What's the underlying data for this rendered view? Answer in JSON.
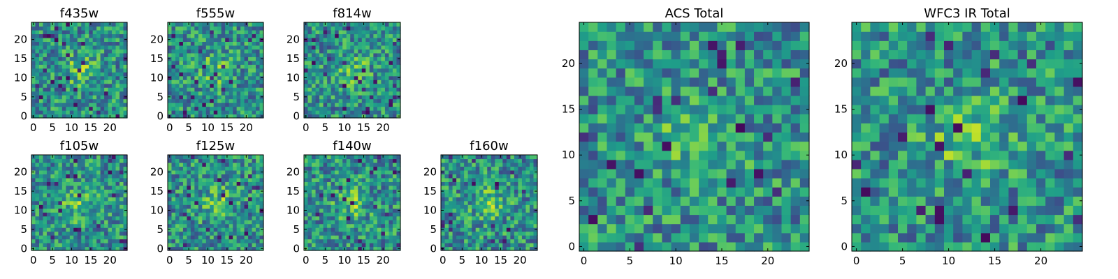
{
  "figure": {
    "panels": [
      {
        "id": "f435w",
        "title": "f435w",
        "seed": 11
      },
      {
        "id": "f555w",
        "title": "f555w",
        "seed": 23
      },
      {
        "id": "f814w",
        "title": "f814w",
        "seed": 37
      },
      {
        "id": "f105w",
        "title": "f105w",
        "seed": 41
      },
      {
        "id": "f125w",
        "title": "f125w",
        "seed": 53
      },
      {
        "id": "f140w",
        "title": "f140w",
        "seed": 67
      },
      {
        "id": "f160w",
        "title": "f160w",
        "seed": 79
      },
      {
        "id": "acs-total",
        "title": "ACS Total",
        "seed": 97
      },
      {
        "id": "wfc3-ir-total",
        "title": "WFC3 IR Total",
        "seed": 113
      }
    ]
  },
  "chart_data": {
    "type": "heatmap",
    "colormap": "viridis",
    "grid_size": 25,
    "x_ticks": [
      "0",
      "5",
      "10",
      "15",
      "20"
    ],
    "y_ticks": [
      "0",
      "5",
      "10",
      "15",
      "20"
    ],
    "xlim": [
      0,
      25
    ],
    "ylim": [
      0,
      25
    ],
    "note": "Each panel is a 25x25 pixel cutout image; small panels show individual HST filters, large panels show ACS and WFC3 IR stacks."
  }
}
